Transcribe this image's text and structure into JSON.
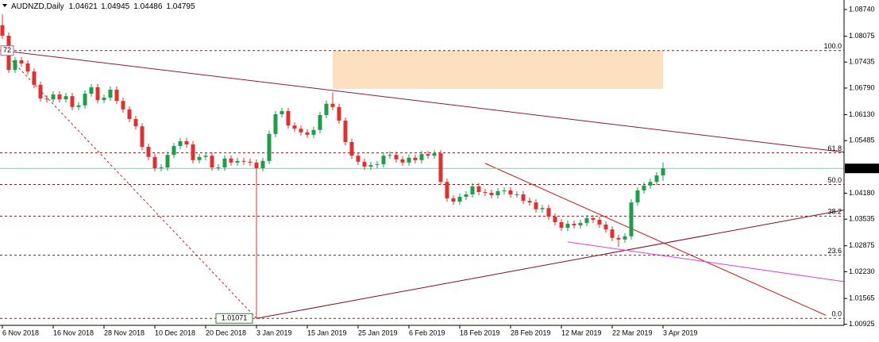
{
  "chart_data": {
    "type": "candlestick",
    "title": "AUDNZD,Daily",
    "x": [
      "6 Nov 2018",
      null,
      null,
      null,
      null,
      null,
      null,
      null,
      "16 Nov 2018",
      null,
      null,
      null,
      null,
      null,
      null,
      null,
      "28 Nov 2018",
      null,
      null,
      null,
      null,
      null,
      null,
      null,
      "10 Dec 2018",
      null,
      null,
      null,
      null,
      null,
      null,
      null,
      "20 Dec 2018",
      null,
      null,
      null,
      null,
      null,
      null,
      null,
      "3 Jan 2019",
      null,
      null,
      null,
      null,
      null,
      null,
      null,
      "15 Jan 2019",
      null,
      null,
      null,
      null,
      null,
      null,
      null,
      "25 Jan 2019",
      null,
      null,
      null,
      null,
      null,
      null,
      null,
      "6 Feb 2019",
      null,
      null,
      null,
      null,
      null,
      null,
      null,
      "18 Feb 2019",
      null,
      null,
      null,
      null,
      null,
      null,
      null,
      "28 Feb 2019",
      null,
      null,
      null,
      null,
      null,
      null,
      null,
      "12 Mar 2019",
      null,
      null,
      null,
      null,
      null,
      null,
      null,
      "22 Mar 2019",
      null,
      null,
      null,
      null,
      null,
      null,
      null,
      "3 Apr 2019"
    ],
    "open": [
      1.0835,
      1.0809,
      1.0724,
      1.0748,
      1.074,
      1.072,
      1.0687,
      1.0653,
      1.0651,
      1.0663,
      1.0651,
      1.0659,
      1.0632,
      1.0636,
      1.0665,
      1.0681,
      1.0649,
      1.0655,
      1.0675,
      1.0647,
      1.0626,
      1.0602,
      1.0584,
      1.0533,
      1.0508,
      1.048,
      1.0482,
      1.0513,
      1.0535,
      1.0547,
      1.0539,
      1.05,
      1.0508,
      1.0511,
      1.0482,
      1.0482,
      1.0504,
      1.0494,
      1.0498,
      1.0496,
      1.0494,
      1.048,
      1.0498,
      1.0565,
      1.0614,
      1.0622,
      1.0586,
      1.0578,
      1.0569,
      1.0563,
      1.0575,
      1.0612,
      1.064,
      1.0632,
      1.0598,
      1.0545,
      1.0511,
      1.0496,
      1.0484,
      1.0488,
      1.049,
      1.0511,
      1.0513,
      1.0502,
      1.0494,
      1.0506,
      1.05,
      1.0515,
      1.0511,
      1.0517,
      1.0446,
      1.0405,
      1.0397,
      1.0409,
      1.0415,
      1.0435,
      1.0421,
      1.0419,
      1.0413,
      1.0423,
      1.0425,
      1.0415,
      1.0415,
      1.0399,
      1.0395,
      1.0378,
      1.0381,
      1.036,
      1.0346,
      1.0332,
      1.0342,
      1.0338,
      1.0344,
      1.0356,
      1.0352,
      1.034,
      1.0328,
      1.0307,
      1.0303,
      1.0311,
      1.0395,
      1.0425,
      1.0437,
      1.0446,
      1.04621
    ],
    "high": [
      1.0862,
      1.0817,
      1.0756,
      1.0756,
      1.0748,
      1.0728,
      1.0695,
      1.0661,
      1.0671,
      1.0671,
      1.0667,
      1.0667,
      1.0644,
      1.0673,
      1.0689,
      1.0689,
      1.0663,
      1.0683,
      1.0683,
      1.0655,
      1.0634,
      1.061,
      1.0592,
      1.0541,
      1.0516,
      1.049,
      1.0521,
      1.0543,
      1.0555,
      1.0555,
      1.0547,
      1.0516,
      1.0519,
      1.0519,
      1.049,
      1.0512,
      1.0512,
      1.0506,
      1.0506,
      1.0504,
      1.0502,
      1.0506,
      1.0573,
      1.0622,
      1.063,
      1.063,
      1.0594,
      1.0586,
      1.0577,
      1.0583,
      1.062,
      1.0648,
      1.0668,
      1.064,
      1.0606,
      1.0553,
      1.0519,
      1.0504,
      1.0496,
      1.0498,
      1.0519,
      1.0521,
      1.0521,
      1.051,
      1.0514,
      1.0514,
      1.0523,
      1.0523,
      1.0525,
      1.0525,
      1.0454,
      1.0413,
      1.0417,
      1.0423,
      1.0443,
      1.0443,
      1.0429,
      1.0427,
      1.0431,
      1.0433,
      1.0433,
      1.0423,
      1.0423,
      1.0407,
      1.0403,
      1.0389,
      1.0389,
      1.0368,
      1.0354,
      1.035,
      1.035,
      1.0352,
      1.0364,
      1.0364,
      1.036,
      1.0348,
      1.0336,
      1.0315,
      1.0319,
      1.0403,
      1.0433,
      1.0445,
      1.0454,
      1.047,
      1.04945
    ],
    "low": [
      1.0801,
      1.0716,
      1.0716,
      1.0732,
      1.0712,
      1.0679,
      1.0645,
      1.0643,
      1.0643,
      1.0643,
      1.0643,
      1.0624,
      1.0624,
      1.0628,
      1.0657,
      1.0641,
      1.0641,
      1.0647,
      1.0639,
      1.0618,
      1.0594,
      1.0576,
      1.0525,
      1.05,
      1.0472,
      1.0472,
      1.0474,
      1.0505,
      1.0527,
      1.0531,
      1.0492,
      1.0492,
      1.05,
      1.0474,
      1.0474,
      1.0474,
      1.0486,
      1.0486,
      1.0488,
      1.0486,
      1.01071,
      1.0472,
      1.049,
      1.0557,
      1.0606,
      1.0578,
      1.057,
      1.0561,
      1.0555,
      1.0555,
      1.0567,
      1.0604,
      1.0624,
      1.059,
      1.0537,
      1.0503,
      1.0488,
      1.0476,
      1.0476,
      1.048,
      1.0482,
      1.0503,
      1.0494,
      1.0486,
      1.0486,
      1.0492,
      1.0492,
      1.0503,
      1.0503,
      1.0438,
      1.0397,
      1.0389,
      1.0389,
      1.0401,
      1.0407,
      1.0413,
      1.0411,
      1.0405,
      1.0405,
      1.0415,
      1.0407,
      1.0407,
      1.0391,
      1.0387,
      1.037,
      1.037,
      1.0352,
      1.0338,
      1.0324,
      1.0324,
      1.033,
      1.033,
      1.0336,
      1.0344,
      1.0332,
      1.032,
      1.0299,
      1.0285,
      1.0295,
      1.0303,
      1.0387,
      1.0417,
      1.0429,
      1.0438,
      1.04486
    ],
    "close": [
      1.0809,
      1.0724,
      1.0748,
      1.074,
      1.072,
      1.0687,
      1.0653,
      1.0651,
      1.0663,
      1.0651,
      1.0659,
      1.0632,
      1.0636,
      1.0665,
      1.0681,
      1.0649,
      1.0655,
      1.0675,
      1.0647,
      1.0626,
      1.0602,
      1.0584,
      1.0533,
      1.0508,
      1.048,
      1.0482,
      1.0513,
      1.0535,
      1.0547,
      1.0539,
      1.05,
      1.0508,
      1.0511,
      1.0482,
      1.0482,
      1.0504,
      1.0494,
      1.0498,
      1.0496,
      1.0494,
      1.048,
      1.0498,
      1.0565,
      1.0614,
      1.0622,
      1.0586,
      1.0578,
      1.0569,
      1.0563,
      1.0575,
      1.0612,
      1.064,
      1.0632,
      1.0598,
      1.0545,
      1.0511,
      1.0496,
      1.0484,
      1.0488,
      1.049,
      1.0511,
      1.0513,
      1.0502,
      1.0494,
      1.0506,
      1.05,
      1.0515,
      1.0511,
      1.0517,
      1.0446,
      1.0405,
      1.0397,
      1.0409,
      1.0415,
      1.0435,
      1.0421,
      1.0419,
      1.0413,
      1.0423,
      1.0425,
      1.0415,
      1.0415,
      1.0399,
      1.0395,
      1.0378,
      1.0381,
      1.036,
      1.0346,
      1.0332,
      1.0342,
      1.0338,
      1.0344,
      1.0356,
      1.0352,
      1.034,
      1.0328,
      1.0307,
      1.0303,
      1.0311,
      1.0395,
      1.0425,
      1.0437,
      1.0446,
      1.04621,
      1.04795
    ],
    "up_color": "#1e9e4a",
    "down_color": "#e0302f",
    "ylim": [
      1.00899,
      1.08976
    ],
    "yticks": [
      {
        "value": 1.0874,
        "label": "1.08740"
      },
      1.08075,
      1.07435,
      {
        "value": 1.0679,
        "label": "1.06790"
      },
      {
        "value": 1.0613,
        "label": "1.06130"
      },
      1.05485,
      {
        "value": 1.0418,
        "label": "1.04180"
      },
      1.03535,
      1.02875,
      {
        "value": 1.0223,
        "label": "1.02230"
      },
      1.01565,
      1.00925
    ],
    "current_line_color": "#9fbfae",
    "anchor_label": "72",
    "fib": {
      "low": 1.01071,
      "high": 1.0772,
      "color": "#8b1a1a",
      "levels": [
        {
          "value": 0,
          "label": "0.0"
        },
        23.6,
        38.2,
        {
          "value": 50,
          "label": "50.0"
        },
        61.8,
        {
          "value": 100,
          "label": "100.0"
        }
      ]
    },
    "drawings": [
      {
        "kind": "zone",
        "color": "#fde0c0",
        "points": [
          [
            52,
            1.0772
          ],
          [
            104,
            1.0677
          ]
        ]
      },
      {
        "kind": "ray",
        "color": "#8b1a3a",
        "points": [
          [
            0,
            1.0772
          ],
          [
            52,
            1.0673
          ]
        ]
      },
      {
        "kind": "dashed",
        "color": "#cc2020",
        "points": [
          [
            0,
            1.0772
          ],
          [
            40,
            1.01071
          ]
        ]
      },
      {
        "kind": "ray",
        "color": "#7a1020",
        "points": [
          [
            40,
            1.01071
          ],
          [
            97,
            1.0273
          ]
        ]
      },
      {
        "kind": "segment",
        "color": "#d01818",
        "points": [
          [
            76,
            1.0492
          ],
          [
            129.6,
            1.0115
          ]
        ]
      },
      {
        "kind": "ray",
        "color": "#e040e0",
        "points": [
          [
            89,
            1.0297
          ],
          [
            104,
            1.0263
          ]
        ]
      }
    ]
  }
}
